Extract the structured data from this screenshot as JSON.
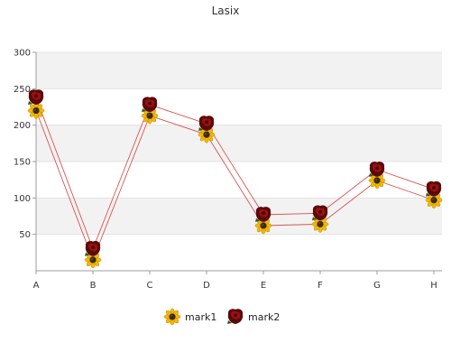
{
  "chart_data": {
    "type": "line",
    "title": "Lasix",
    "xlabel": "",
    "ylabel": "",
    "categories": [
      "A",
      "B",
      "C",
      "D",
      "E",
      "F",
      "G",
      "H"
    ],
    "ylim": [
      0,
      300
    ],
    "yticks": [
      50,
      100,
      150,
      200,
      250,
      300
    ],
    "grid": "horizontal alternating bands",
    "legend": "bottom-center",
    "series": [
      {
        "name": "mark1",
        "marker": "sunflower-icon",
        "values": [
          220,
          15,
          213,
          187,
          62,
          64,
          124,
          97
        ]
      },
      {
        "name": "mark2",
        "marker": "rose-icon",
        "values": [
          238,
          30,
          228,
          202,
          77,
          79,
          139,
          112
        ]
      }
    ],
    "colors": {
      "line": "#d9534f",
      "band": "#f2f2f2",
      "axis": "#9e9e9e",
      "sunflower_petal": "#f2b705",
      "sunflower_center": "#3b2a10",
      "rose_dark": "#5a0a0a",
      "rose_mid": "#9b1010"
    }
  }
}
